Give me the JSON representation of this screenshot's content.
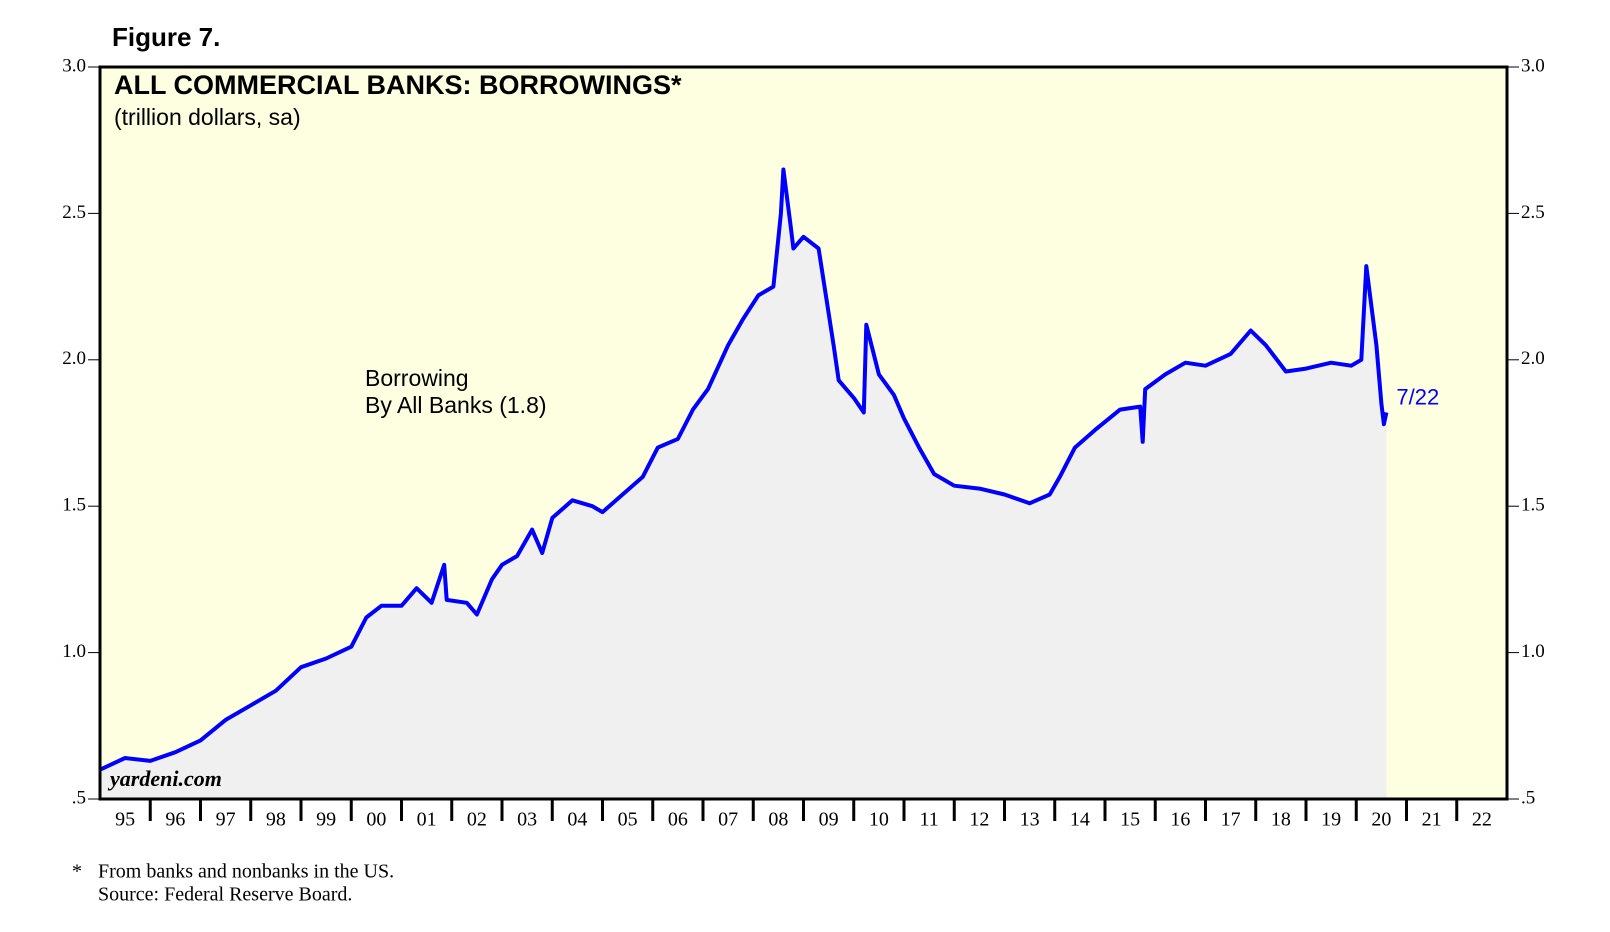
{
  "chart_data": {
    "type": "area",
    "figure_label": "Figure 7.",
    "title": "ALL COMMERCIAL BANKS: BORROWINGS*",
    "subtitle": "(trillion dollars, sa)",
    "label_lines": [
      "Borrowing",
      "By All Banks (1.8)"
    ],
    "end_label": "7/22",
    "watermark": "yardeni.com",
    "footnotes": [
      "*",
      "From banks and nonbanks in the US.",
      "Source: Federal Reserve Board."
    ],
    "series": [
      {
        "name": "Borrowing",
        "color": "#0000ff",
        "fill": "#f0f0f0",
        "x": [
          1995.0,
          1995.5,
          1996.0,
          1996.5,
          1997.0,
          1997.5,
          1998.0,
          1998.5,
          1999.0,
          1999.5,
          2000.0,
          2000.3,
          2000.6,
          2001.0,
          2001.3,
          2001.6,
          2001.85,
          2001.9,
          2002.3,
          2002.5,
          2002.8,
          2003.0,
          2003.3,
          2003.6,
          2003.8,
          2004.0,
          2004.4,
          2004.8,
          2005.0,
          2005.4,
          2005.8,
          2006.1,
          2006.5,
          2006.8,
          2007.1,
          2007.5,
          2007.8,
          2008.1,
          2008.4,
          2008.55,
          2008.6,
          2008.75,
          2008.8,
          2009.0,
          2009.3,
          2009.6,
          2009.7,
          2010.0,
          2010.2,
          2010.25,
          2010.5,
          2010.8,
          2011.0,
          2011.3,
          2011.6,
          2012.0,
          2012.5,
          2013.0,
          2013.5,
          2013.9,
          2014.1,
          2014.4,
          2014.8,
          2015.3,
          2015.7,
          2015.75,
          2015.8,
          2016.2,
          2016.6,
          2017.0,
          2017.5,
          2017.9,
          2018.2,
          2018.6,
          2019.0,
          2019.5,
          2019.9,
          2020.1,
          2020.2,
          2020.4,
          2020.5,
          2020.55,
          2020.6
        ],
        "values": [
          0.6,
          0.64,
          0.63,
          0.66,
          0.7,
          0.77,
          0.82,
          0.87,
          0.95,
          0.98,
          1.02,
          1.12,
          1.16,
          1.16,
          1.22,
          1.17,
          1.3,
          1.18,
          1.17,
          1.13,
          1.25,
          1.3,
          1.33,
          1.42,
          1.34,
          1.46,
          1.52,
          1.5,
          1.48,
          1.54,
          1.6,
          1.7,
          1.73,
          1.83,
          1.9,
          2.05,
          2.14,
          2.22,
          2.25,
          2.5,
          2.65,
          2.45,
          2.38,
          2.42,
          2.38,
          2.05,
          1.93,
          1.87,
          1.82,
          2.12,
          1.95,
          1.88,
          1.8,
          1.7,
          1.61,
          1.57,
          1.56,
          1.54,
          1.51,
          1.54,
          1.6,
          1.7,
          1.76,
          1.83,
          1.84,
          1.72,
          1.9,
          1.95,
          1.99,
          1.98,
          2.02,
          2.1,
          2.05,
          1.96,
          1.97,
          1.99,
          1.98,
          2.0,
          2.32,
          2.05,
          1.85,
          1.78,
          1.82
        ]
      }
    ],
    "xlim": [
      1995,
      2023
    ],
    "xticks": [
      {
        "value": 1995.5,
        "label": "95"
      },
      {
        "value": 1996.5,
        "label": "96"
      },
      {
        "value": 1997.5,
        "label": "97"
      },
      {
        "value": 1998.5,
        "label": "98"
      },
      {
        "value": 1999.5,
        "label": "99"
      },
      {
        "value": 2000.5,
        "label": "00"
      },
      {
        "value": 2001.5,
        "label": "01"
      },
      {
        "value": 2002.5,
        "label": "02"
      },
      {
        "value": 2003.5,
        "label": "03"
      },
      {
        "value": 2004.5,
        "label": "04"
      },
      {
        "value": 2005.5,
        "label": "05"
      },
      {
        "value": 2006.5,
        "label": "06"
      },
      {
        "value": 2007.5,
        "label": "07"
      },
      {
        "value": 2008.5,
        "label": "08"
      },
      {
        "value": 2009.5,
        "label": "09"
      },
      {
        "value": 2010.5,
        "label": "10"
      },
      {
        "value": 2011.5,
        "label": "11"
      },
      {
        "value": 2012.5,
        "label": "12"
      },
      {
        "value": 2013.5,
        "label": "13"
      },
      {
        "value": 2014.5,
        "label": "14"
      },
      {
        "value": 2015.5,
        "label": "15"
      },
      {
        "value": 2016.5,
        "label": "16"
      },
      {
        "value": 2017.5,
        "label": "17"
      },
      {
        "value": 2018.5,
        "label": "18"
      },
      {
        "value": 2019.5,
        "label": "19"
      },
      {
        "value": 2020.5,
        "label": "20"
      },
      {
        "value": 2021.5,
        "label": "21"
      },
      {
        "value": 2022.5,
        "label": "22"
      }
    ],
    "ylim": [
      0.5,
      3.0
    ],
    "yticks": [
      {
        "value": 0.5,
        "label": ".5"
      },
      {
        "value": 1.0,
        "label": "1.0"
      },
      1.5,
      {
        "value": 2.0,
        "label": "2.0"
      },
      2.5,
      {
        "value": 3.0,
        "label": "3.0"
      }
    ],
    "background": "#fefee0"
  }
}
